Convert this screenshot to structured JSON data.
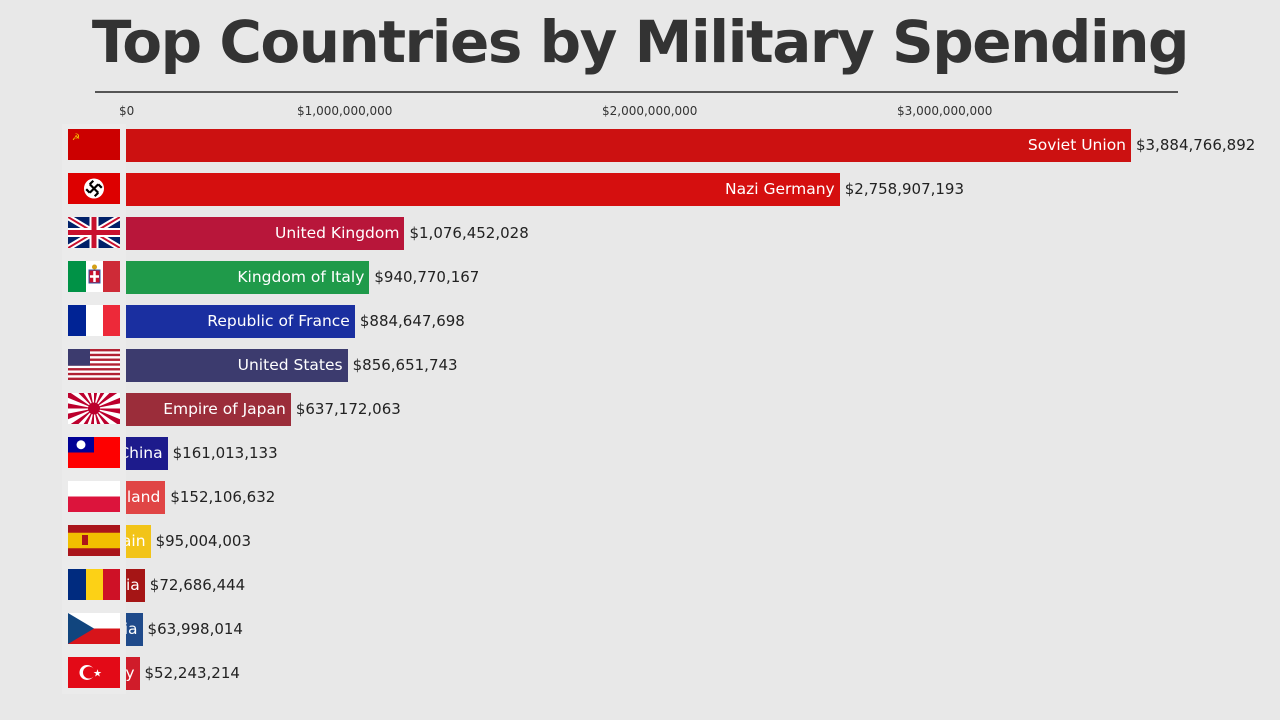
{
  "chart_data": {
    "type": "bar",
    "orientation": "horizontal",
    "title": "Top Countries by Military Spending",
    "tick_labels": [
      "$0",
      "$1,000,000,000",
      "$2,000,000,000",
      "$3,000,000,000"
    ],
    "categories": [
      "Soviet Union",
      "Nazi Germany",
      "United Kingdom",
      "Kingdom of Italy",
      "Republic of France",
      "United States",
      "Empire of Japan",
      "China",
      "Poland",
      "Spain",
      "Romania",
      "Czechoslovakia",
      "Turkey"
    ],
    "values": [
      3884766892,
      2758907193,
      1076452028,
      940770167,
      884647698,
      856651743,
      637172063,
      161013133,
      152106632,
      95004003,
      72686444,
      63998014,
      52243214
    ],
    "value_labels": [
      "$3,884,766,892",
      "$2,758,907,193",
      "$1,076,452,028",
      "$940,770,167",
      "$884,647,698",
      "$856,651,743",
      "$637,172,063",
      "$161,013,133",
      "$152,106,632",
      "$95,004,003",
      "$72,686,444",
      "$63,998,014",
      "$52,243,214"
    ],
    "colors": [
      "#cc1111",
      "#d50f0f",
      "#b8163a",
      "#1f9a4a",
      "#1a2fa0",
      "#3c3b6e",
      "#9b2d3a",
      "#1d1b8c",
      "#e04545",
      "#f2c418",
      "#a51515",
      "#1f4a8a",
      "#d01c2a"
    ],
    "flags": [
      "ussr",
      "germany-1935",
      "uk",
      "italy-kingdom",
      "france",
      "usa",
      "japan-rising-sun",
      "roc",
      "poland",
      "spain",
      "romania",
      "czechoslovakia",
      "turkey"
    ],
    "xlim": [
      0,
      3884766892
    ],
    "grid": false,
    "legend": "none"
  }
}
